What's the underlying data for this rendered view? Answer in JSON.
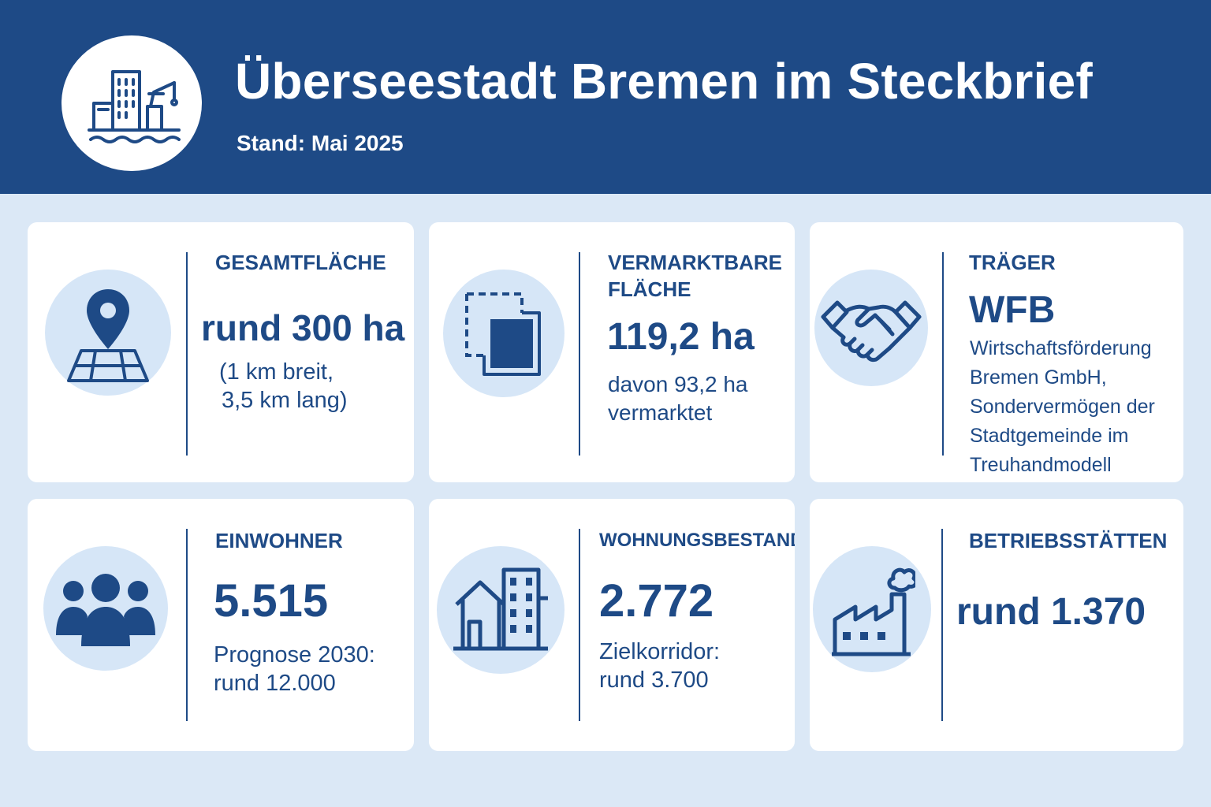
{
  "header": {
    "title": "Überseestadt Bremen im Steckbrief",
    "subtitle": "Stand: Mai 2025",
    "logo_icon": "harbor-city-icon",
    "background_color": "#1e4a86"
  },
  "colors": {
    "primary": "#1e4a86",
    "background": "#dbe8f6",
    "card": "#ffffff",
    "icon_circle": "#d6e6f7"
  },
  "cards": [
    {
      "icon": "map-pin-icon",
      "label": "GESAMTFLÄCHE",
      "value": "rund 300 ha",
      "note_lines": [
        "(1 km breit,",
        "3,5 km lang)"
      ]
    },
    {
      "icon": "area-plot-icon",
      "label_lines": [
        "VERMARKTBARE",
        "FLÄCHE"
      ],
      "value": "119,2 ha",
      "note_lines": [
        "davon 93,2 ha",
        "vermarktet"
      ]
    },
    {
      "icon": "handshake-icon",
      "label": "TRÄGER",
      "value": "WFB",
      "note_lines": [
        "Wirtschaftsförderung",
        "Bremen GmbH,",
        "Sondervermögen der",
        "Stadtgemeinde im",
        "Treuhandmodell"
      ]
    },
    {
      "icon": "people-icon",
      "label": "EINWOHNER",
      "value": "5.515",
      "note_lines": [
        "Prognose 2030:",
        "rund 12.000"
      ]
    },
    {
      "icon": "housing-icon",
      "label": "WOHNUNGSBESTAND",
      "value": "2.772",
      "note_lines": [
        "Zielkorridor:",
        "rund 3.700"
      ]
    },
    {
      "icon": "factory-icon",
      "label": "BETRIEBSSTÄTTEN",
      "value": "rund 1.370"
    }
  ]
}
